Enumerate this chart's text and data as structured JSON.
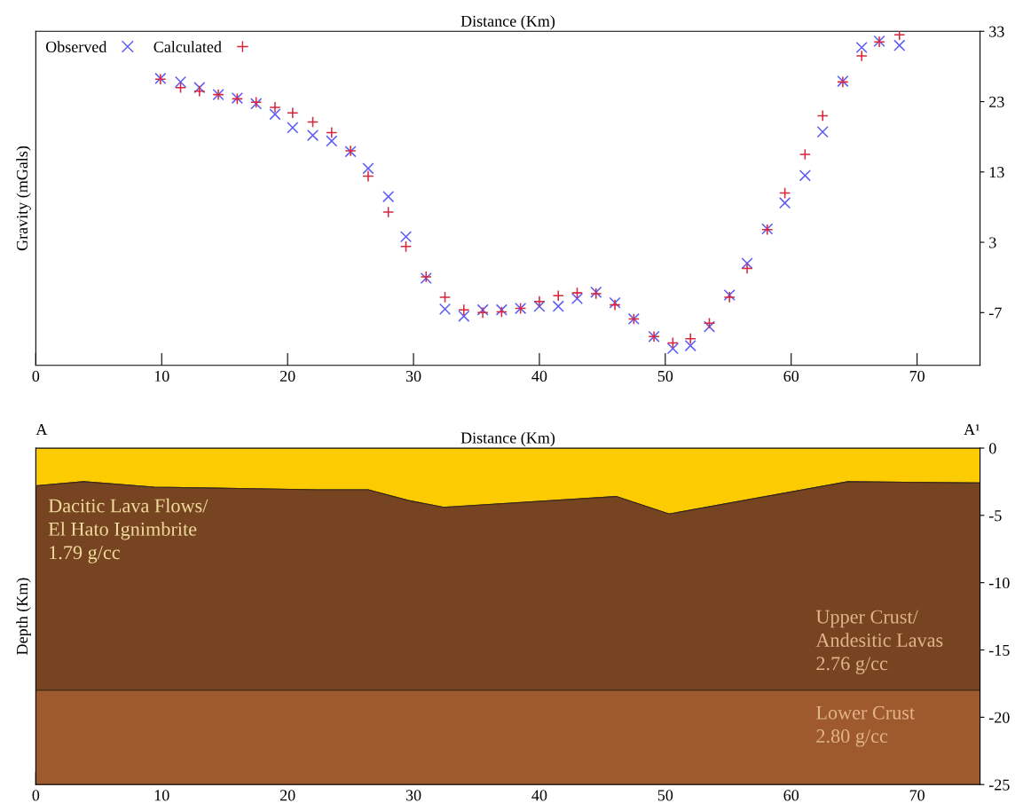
{
  "chart_data": [
    {
      "type": "scatter",
      "xlabel": "Distance (Km)",
      "ylabel": "Gravity (mGals)",
      "xlim": [
        0,
        75
      ],
      "xticks": [
        0,
        10,
        20,
        30,
        40,
        50,
        60,
        70
      ],
      "ylim": [
        -14.5,
        33
      ],
      "yticks": [
        33,
        23,
        13,
        3,
        -7
      ],
      "grid": false,
      "legend": "top left",
      "x": [
        9.9,
        11.5,
        13.0,
        14.5,
        16.0,
        17.5,
        19.0,
        20.4,
        22.0,
        23.5,
        25.0,
        26.4,
        28.0,
        29.4,
        31.0,
        32.5,
        34.0,
        35.5,
        37.0,
        38.5,
        40.0,
        41.5,
        43.0,
        44.5,
        46.0,
        47.5,
        49.1,
        50.6,
        52.0,
        53.5,
        55.1,
        56.5,
        58.1,
        59.5,
        61.1,
        62.5,
        64.1,
        65.6,
        67.0,
        68.6
      ],
      "series": [
        {
          "name": "Observed",
          "color": "#5b5bf5",
          "marker": "cross",
          "values": [
            26.3,
            25.8,
            25.0,
            24.0,
            23.5,
            22.7,
            21.2,
            19.3,
            18.2,
            17.4,
            15.9,
            13.5,
            9.5,
            3.8,
            -2.1,
            -6.5,
            -7.5,
            -6.6,
            -6.6,
            -6.4,
            -6.1,
            -6.1,
            -5.0,
            -4.1,
            -5.6,
            -7.9,
            -10.4,
            -12.1,
            -11.7,
            -9.0,
            -4.5,
            0.0,
            4.9,
            8.6,
            12.5,
            18.7,
            25.9,
            30.7,
            31.6,
            31.0
          ]
        },
        {
          "name": "Calculated",
          "color": "#d6263b",
          "marker": "plus",
          "values": [
            26.2,
            25.0,
            24.5,
            24.0,
            23.4,
            22.9,
            22.2,
            21.4,
            20.1,
            18.6,
            16.0,
            12.4,
            7.3,
            2.4,
            -1.9,
            -4.8,
            -6.6,
            -7.0,
            -6.9,
            -6.4,
            -5.4,
            -4.6,
            -4.2,
            -4.3,
            -5.9,
            -7.9,
            -10.4,
            -11.3,
            -10.7,
            -8.5,
            -4.8,
            -0.7,
            4.8,
            10.0,
            15.5,
            21.0,
            25.8,
            29.5,
            31.5,
            32.5
          ]
        }
      ]
    },
    {
      "type": "area",
      "stacked": true,
      "xlabel": "Distance (Km)",
      "ylabel": "Depth (Km)",
      "xlim": [
        0,
        75
      ],
      "xticks": [
        0,
        10,
        20,
        30,
        40,
        50,
        60,
        70
      ],
      "ylim": [
        -25,
        0
      ],
      "yticks": [
        0,
        -5,
        -10,
        -15,
        -20,
        -25
      ],
      "grid": false,
      "legend": false,
      "x": [
        0,
        3.8,
        9.4,
        22.3,
        26.4,
        29.6,
        32.4,
        46.1,
        50.3,
        64.5,
        75
      ],
      "series": [
        {
          "color": "#fccb00",
          "values": [
            -2.8,
            -2.5,
            -2.9,
            -3.1,
            -3.1,
            -3.9,
            -4.4,
            -3.6,
            -4.9,
            -2.5,
            -2.6
          ]
        },
        {
          "color": "#774422",
          "values": [
            -15.2,
            -15.5,
            -15.1,
            -14.9,
            -14.9,
            -14.1,
            -13.6,
            -14.4,
            -13.1,
            -15.5,
            -15.4
          ]
        },
        {
          "color": "#9e5a2d",
          "values": [
            -7,
            -7,
            -7,
            -7,
            -7,
            -7,
            -7,
            -7,
            -7,
            -7,
            -7
          ]
        }
      ],
      "annotations": [
        {
          "text": "A",
          "x": 0,
          "y": 0
        },
        {
          "text": "A¹",
          "x": 75,
          "y": 0
        },
        "Dacitic Lava Flows/\nEl Hato Ignimbrite\n1.79 g/cc",
        "Upper Crust/\nAndesitic Lavas\n2.76 g/cc",
        "Lower Crust\n2.80 g/cc"
      ]
    }
  ]
}
